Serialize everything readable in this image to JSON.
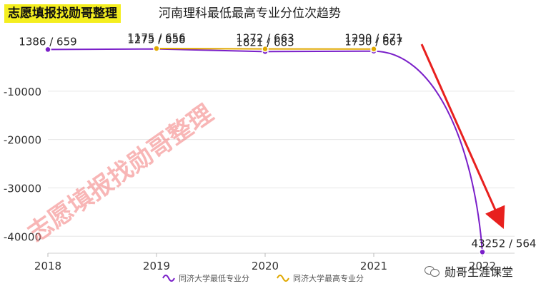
{
  "header": {
    "badge": "志愿填报找勋哥整理",
    "title": "河南理科最低最高专业分位次趋势"
  },
  "watermark": "志愿填报找勋哥整理",
  "footer": {
    "brand": "勋哥生涯课堂",
    "icon": "wechat-icon"
  },
  "chart_data": {
    "type": "line",
    "title": "河南理科最低最高专业分位次趋势",
    "x": [
      "2018",
      "2019",
      "2020",
      "2021",
      "2022"
    ],
    "series": [
      {
        "name": "同济大学最低专业分",
        "color": "#7a1fc9",
        "values": [
          -1386,
          -1275,
          -1821,
          -1730,
          -43252
        ],
        "labels": [
          "1386 / 659",
          "1275 / 658",
          "1821 / 683",
          "1730 / 667",
          "43252 / 564"
        ]
      },
      {
        "name": "同济大学最高专业分",
        "color": "#e0a800",
        "values": [
          null,
          -1175,
          -1272,
          -1290,
          null
        ],
        "labels": [
          "",
          "1175 / 656",
          "1272 / 663",
          "1290 / 671",
          ""
        ]
      }
    ],
    "yticks": [
      -40000,
      -30000,
      -20000,
      -10000
    ],
    "ylim": [
      -43500,
      0
    ],
    "grid": true,
    "legend": "bottom",
    "annotation": "red arrow pointing to 2022 drop"
  }
}
